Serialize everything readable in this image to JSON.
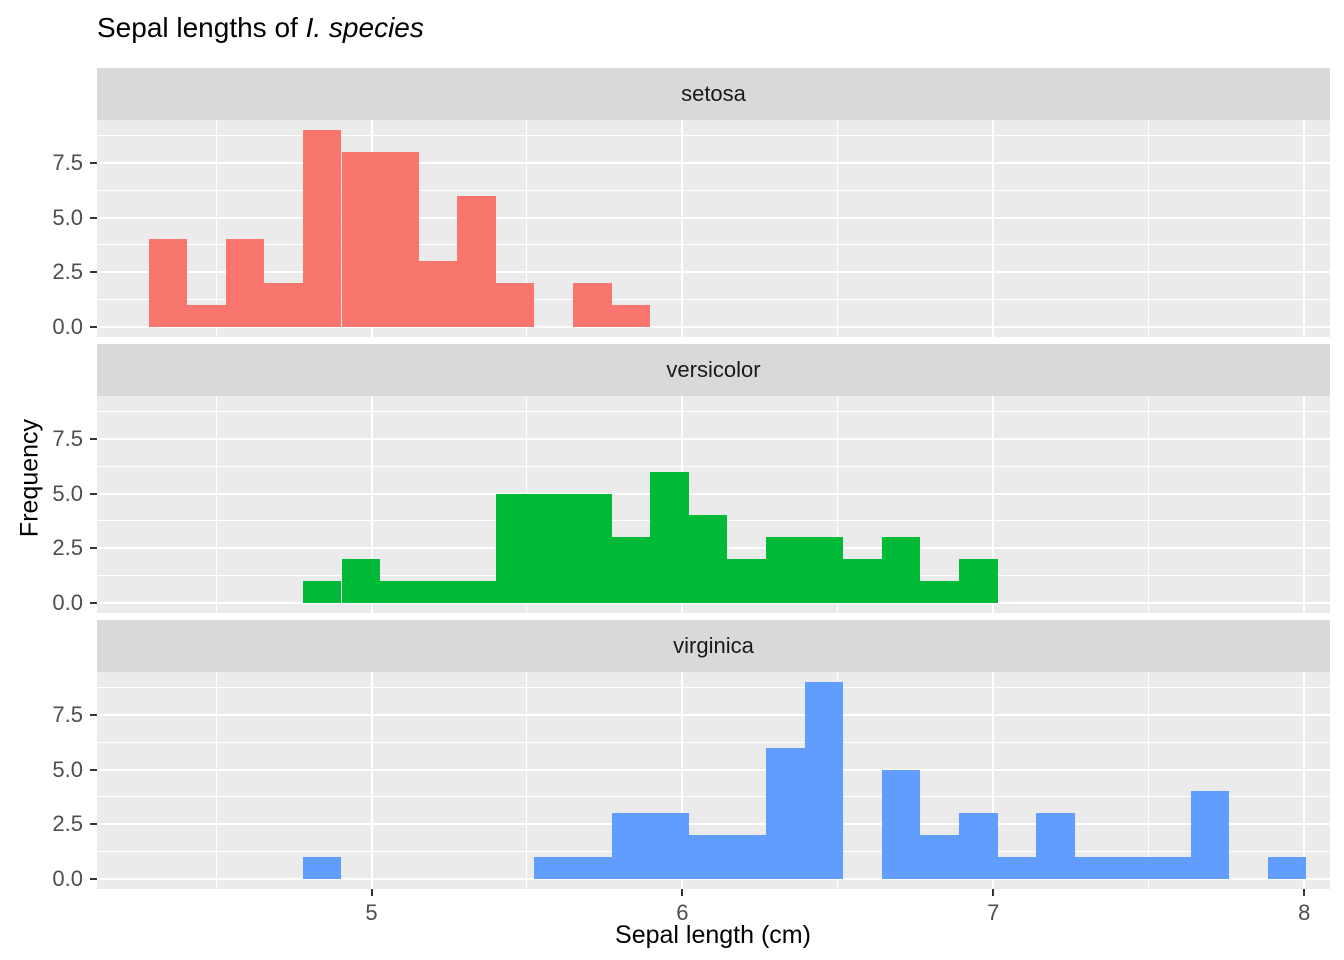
{
  "chart_data": {
    "type": "bar",
    "variant": "faceted-histogram",
    "title": {
      "main": "Sepal lengths of ",
      "italic": "I. species"
    },
    "xlabel": "Sepal length (cm)",
    "ylabel": "Frequency",
    "x_ticks": [
      5,
      6,
      7,
      8
    ],
    "x_tick_labels": [
      "5",
      "6",
      "7",
      "8"
    ],
    "x_minor_ticks": [
      4.5,
      5.5,
      6.5,
      7.5
    ],
    "y_ticks": [
      0,
      2.5,
      5,
      7.5
    ],
    "y_tick_labels": [
      "0.0",
      "2.5",
      "5.0",
      "7.5"
    ],
    "y_minor_ticks": [
      1.25,
      3.75,
      6.25,
      8.75
    ],
    "x_domain": [
      4.117,
      8.083
    ],
    "y_domain": [
      -0.45,
      9.45
    ],
    "bin_origin": 4.282759,
    "bin_width": 0.124138,
    "grid": "on",
    "legend_position": "none",
    "panel_bg": "#EBEBEB",
    "strip_bg": "#D9D9D9",
    "grid_color": "#FFFFFF",
    "tick_text_color": "#4D4D4D",
    "facets": [
      {
        "label": "setosa",
        "color": "#F8766D",
        "first_bin": 0,
        "counts": [
          4,
          1,
          4,
          2,
          9,
          8,
          8,
          3,
          6,
          2,
          0,
          2,
          1
        ]
      },
      {
        "label": "versicolor",
        "color": "#00BA38",
        "first_bin": 4,
        "counts": [
          1,
          2,
          1,
          1,
          1,
          5,
          5,
          5,
          3,
          6,
          4,
          2,
          3,
          3,
          2,
          3,
          1,
          2
        ]
      },
      {
        "label": "virginica",
        "color": "#619CFF",
        "first_bin": 4,
        "counts": [
          1,
          0,
          0,
          0,
          0,
          0,
          1,
          1,
          3,
          3,
          2,
          2,
          6,
          9,
          0,
          5,
          2,
          3,
          1,
          3,
          1,
          1,
          1,
          4,
          0,
          1
        ]
      }
    ]
  }
}
